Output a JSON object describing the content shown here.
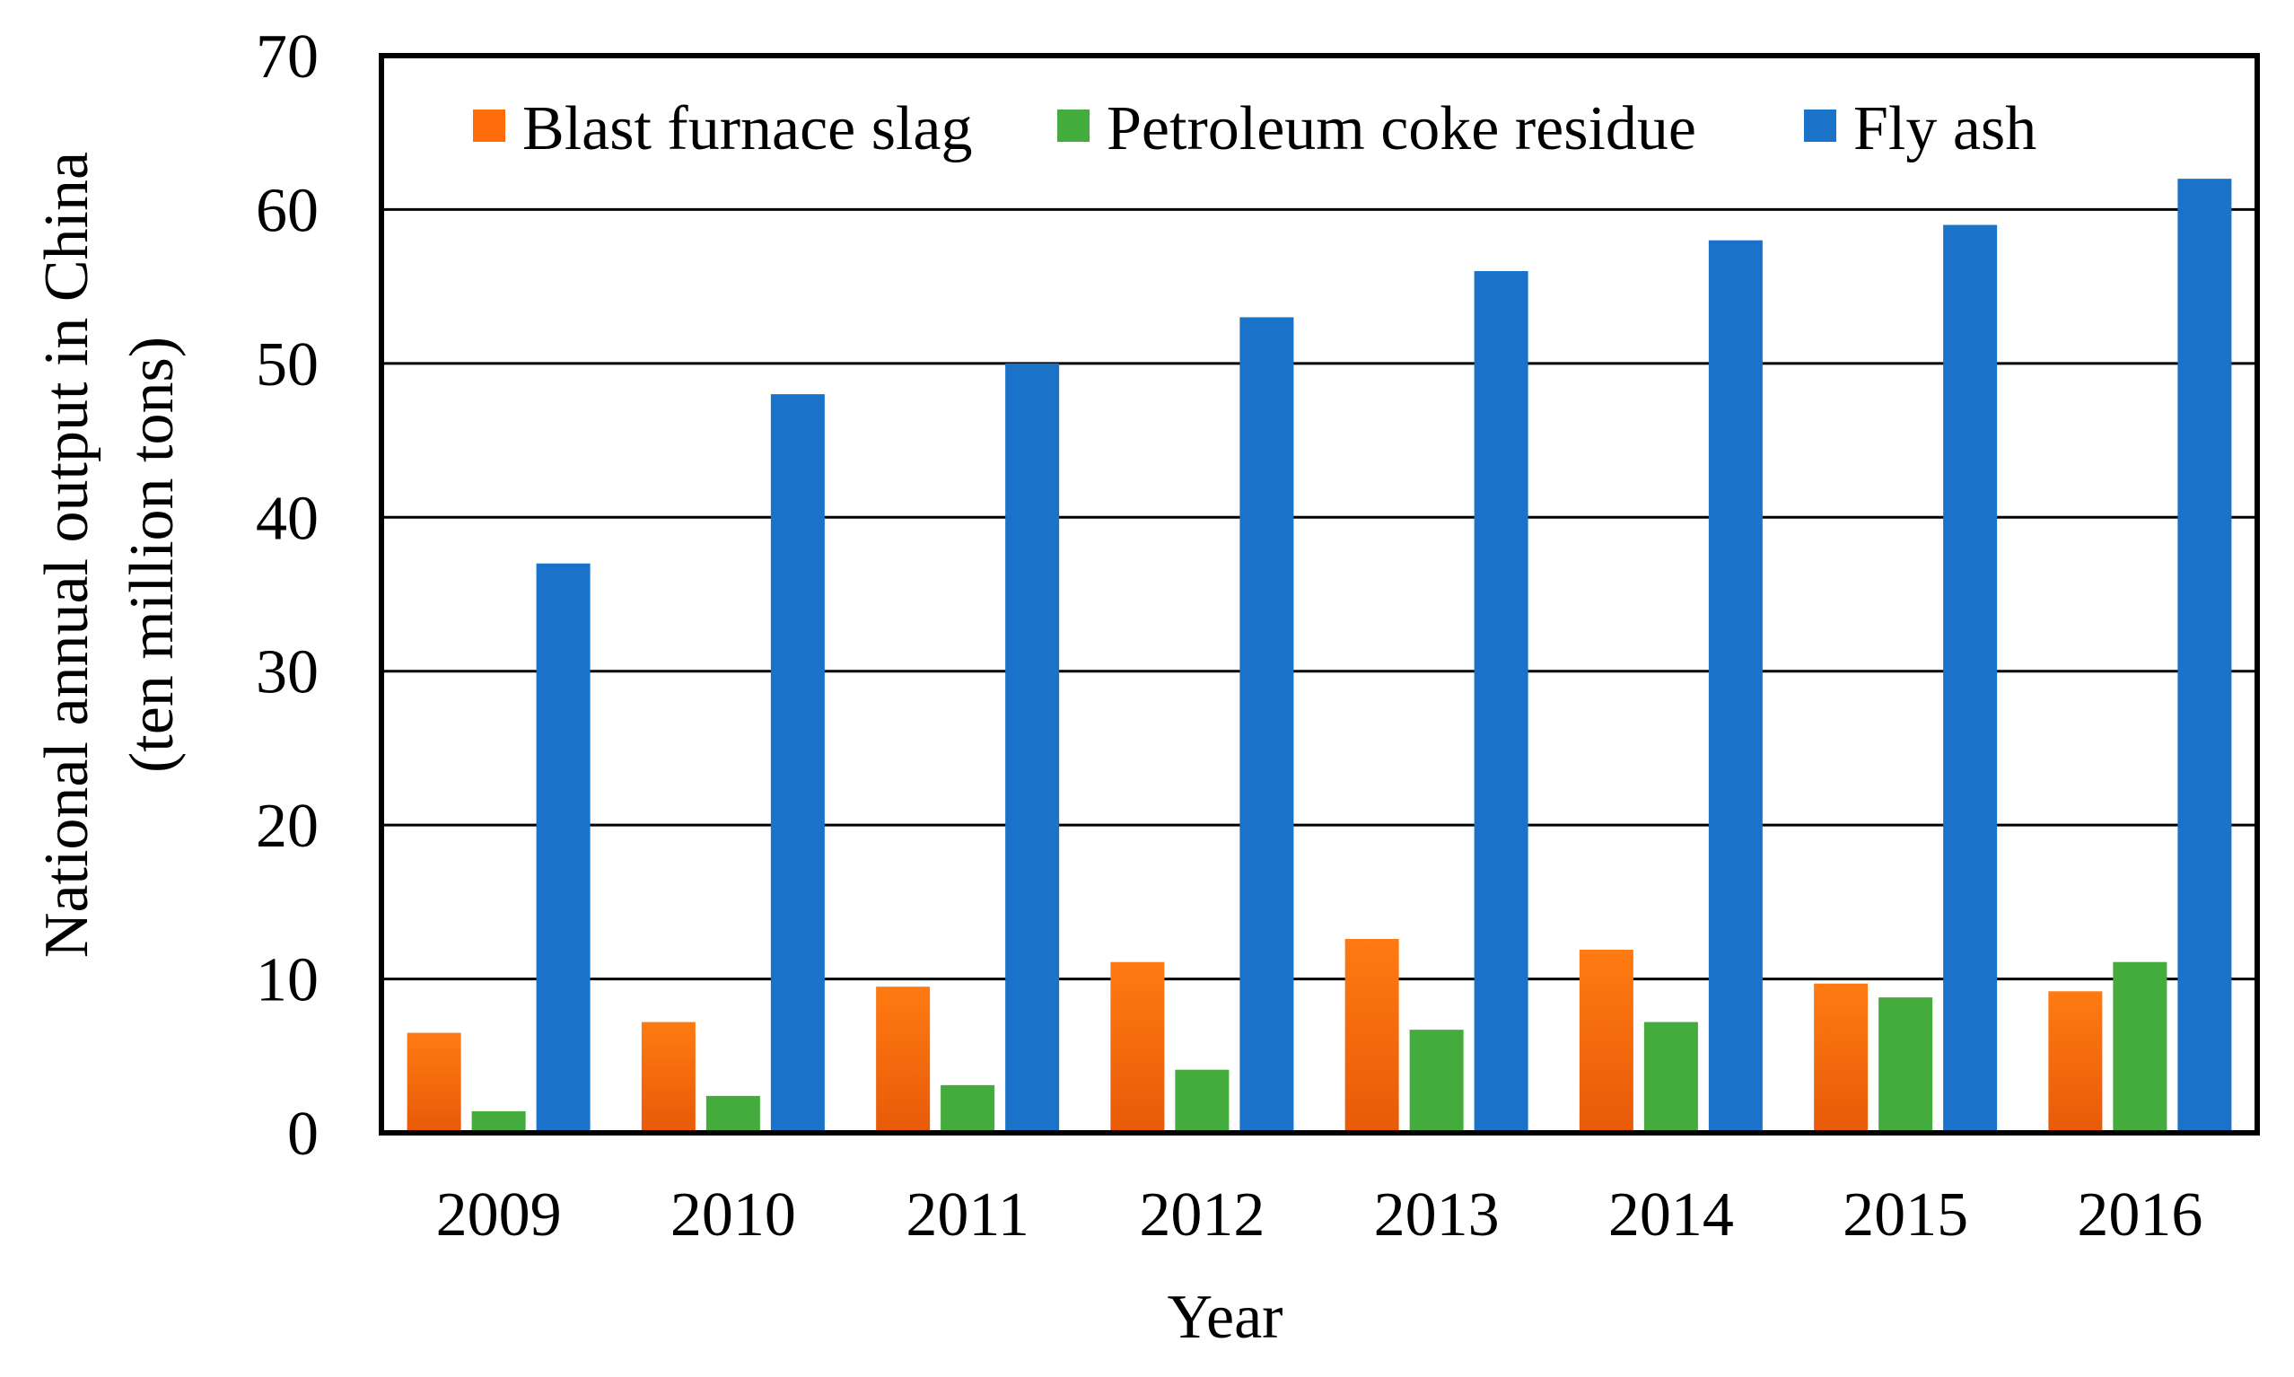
{
  "chart_data": {
    "type": "bar",
    "title": "",
    "xlabel": "Year",
    "ylabel_line1": "National annual output in China",
    "ylabel_line2": "(ten million tons)",
    "categories": [
      "2009",
      "2010",
      "2011",
      "2012",
      "2013",
      "2014",
      "2015",
      "2016"
    ],
    "ylim": [
      0,
      70
    ],
    "yticks": [
      0,
      10,
      20,
      30,
      40,
      50,
      60,
      70
    ],
    "grid": true,
    "legend_position": "top",
    "series": [
      {
        "name": "Blast furnace slag",
        "color": "#FF6D0A",
        "values": [
          6.5,
          7.2,
          9.5,
          11.1,
          12.6,
          11.9,
          9.7,
          9.2
        ]
      },
      {
        "name": "Petroleum coke residue",
        "color": "#43AC3C",
        "values": [
          1.4,
          2.4,
          3.1,
          4.1,
          6.7,
          7.2,
          8.8,
          11.1
        ]
      },
      {
        "name": "Fly ash",
        "color": "#1A73C8",
        "values": [
          37,
          48,
          50,
          53,
          56,
          58,
          59,
          62
        ]
      }
    ]
  }
}
